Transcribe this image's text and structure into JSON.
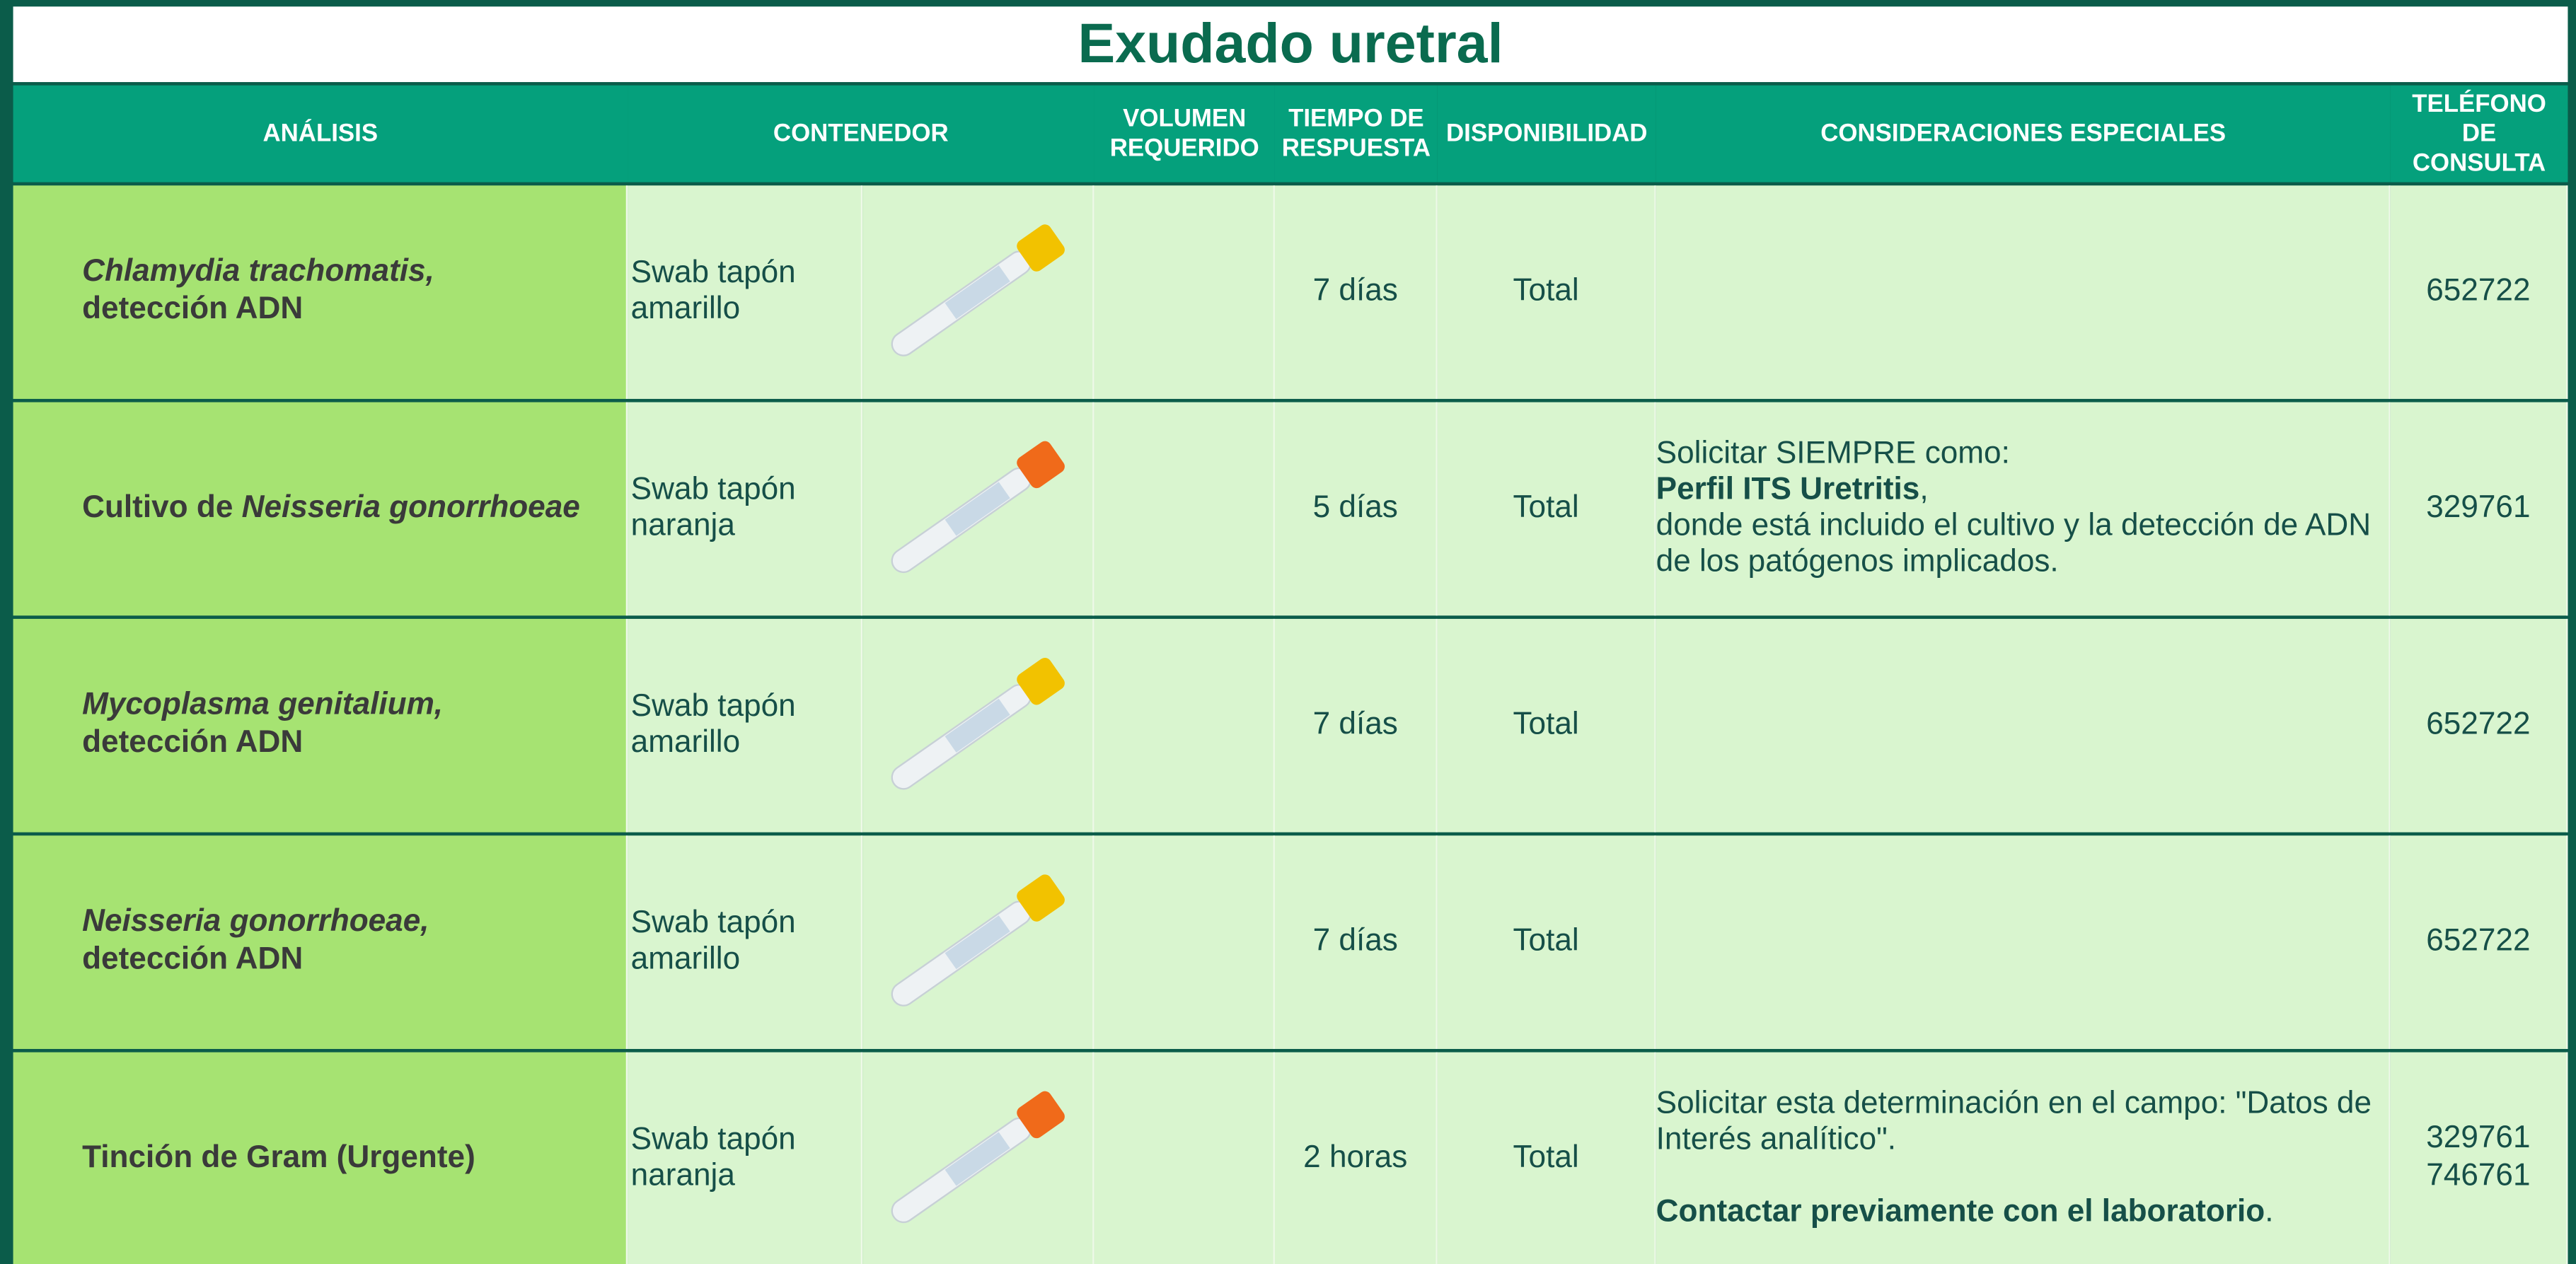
{
  "title": "Exudado uretral",
  "table": {
    "headers": [
      "ANÁLISIS",
      "CONTENEDOR",
      "VOLUMEN REQUERIDO",
      "TIEMPO DE RESPUESTA",
      "DISPONIBILIDAD",
      "CONSIDERACIONES ESPECIALES",
      "TELÉFONO DE CONSULTA"
    ],
    "rows": [
      {
        "analysis": [
          [
            {
              "text": "Chlamydia trachomatis,",
              "style": "italic"
            }
          ],
          [
            {
              "text": "detección ADN",
              "style": "normal"
            }
          ]
        ],
        "container": "Swab tapón amarillo",
        "cap_color": "#f2c200",
        "response_time": "7 días",
        "availability": "Total",
        "phones": [
          "652722"
        ]
      },
      {
        "analysis": [
          [
            {
              "text": "Cultivo de ",
              "style": "normal"
            },
            {
              "text": "Neisseria gonorrhoeae",
              "style": "italic"
            }
          ]
        ],
        "container": "Swab tapón naranja",
        "cap_color": "#f06a1a",
        "response_time": "5 días",
        "availability": "Total",
        "considerations": [
          [
            [
              {
                "text": "Solicitar SIEMPRE como:",
                "style": "normal"
              }
            ],
            [
              {
                "text": "Perfil ITS Uretritis",
                "style": "bold"
              },
              {
                "text": ",",
                "style": "normal"
              }
            ],
            [
              {
                "text": "donde está incluido el cultivo y la detección de ADN de los patógenos implicados.",
                "style": "normal"
              }
            ]
          ]
        ],
        "phones": [
          "329761"
        ]
      },
      {
        "analysis": [
          [
            {
              "text": "Mycoplasma genitalium,",
              "style": "italic"
            }
          ],
          [
            {
              "text": "detección ADN",
              "style": "normal"
            }
          ]
        ],
        "container": "Swab tapón amarillo",
        "cap_color": "#f2c200",
        "response_time": "7 días",
        "availability": "Total",
        "phones": [
          "652722"
        ]
      },
      {
        "analysis": [
          [
            {
              "text": "Neisseria gonorrhoeae,",
              "style": "italic"
            }
          ],
          [
            {
              "text": "detección ADN",
              "style": "normal"
            }
          ]
        ],
        "container": "Swab tapón amarillo",
        "cap_color": "#f2c200",
        "response_time": "7 días",
        "availability": "Total",
        "phones": [
          "652722"
        ]
      },
      {
        "analysis": [
          [
            {
              "text": "Tinción de Gram (Urgente)",
              "style": "normal"
            }
          ]
        ],
        "container": "Swab tapón naranja",
        "cap_color": "#f06a1a",
        "response_time": "2 horas",
        "availability": "Total",
        "considerations": [
          [
            [
              {
                "text": "Solicitar esta determinación en el campo: \"Datos de Interés analítico\".",
                "style": "normal"
              }
            ]
          ],
          [
            [
              {
                "text": "Contactar previamente con el laboratorio",
                "style": "bold"
              },
              {
                "text": ".",
                "style": "normal"
              }
            ]
          ]
        ],
        "phones": [
          "329761",
          "746761"
        ]
      }
    ]
  }
}
